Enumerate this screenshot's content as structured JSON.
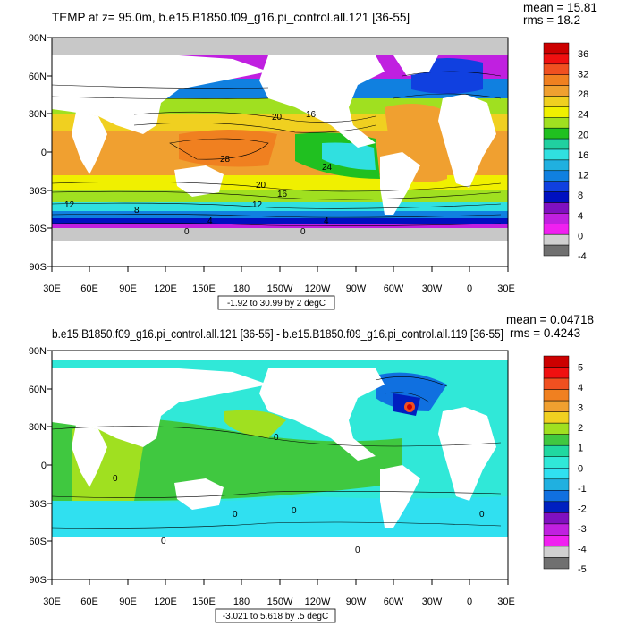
{
  "panel1": {
    "title": "TEMP at z=  95.0m, b.e15.B1850.f09_g16.pi_control.all.121 [36-55]",
    "stats_mean": "mean = 15.81",
    "stats_rms": "rms = 18.2",
    "contour_info": "-1.92 to 30.99 by 2 degC",
    "lat_labels": [
      "90N",
      "60N",
      "30N",
      "0",
      "30S",
      "60S",
      "90S"
    ],
    "lon_labels": [
      "30E",
      "60E",
      "90E",
      "120E",
      "150E",
      "180",
      "150W",
      "120W",
      "90W",
      "60W",
      "30W",
      "0",
      "30E"
    ],
    "colorbar_labels": [
      "36",
      "32",
      "28",
      "24",
      "20",
      "16",
      "12",
      "8",
      "4",
      "0",
      "-4"
    ],
    "colorbar_colors": [
      "#cc0000",
      "#f01010",
      "#f05020",
      "#f08020",
      "#f0a030",
      "#f0d020",
      "#f0f000",
      "#a0e020",
      "#20c020",
      "#20d0a0",
      "#30e0e0",
      "#20b0e0",
      "#1080e0",
      "#1040e0",
      "#0010c0",
      "#8010c0",
      "#c020e0",
      "#f020f0",
      "#d0d0d0",
      "#707070"
    ],
    "contour_labels": [
      "20",
      "16",
      "28",
      "24",
      "20",
      "16",
      "12",
      "12",
      "8",
      "4",
      "0",
      "0",
      "4"
    ]
  },
  "panel2": {
    "title": "b.e15.B1850.f09_g16.pi_control.all.121 [36-55] - b.e15.B1850.f09_g16.pi_control.all.119 [36-55]",
    "stats_mean": "mean = 0.04718",
    "stats_rms": "rms = 0.4243",
    "contour_info": "-3.021 to 5.618 by .5 degC",
    "lat_labels": [
      "90N",
      "60N",
      "30N",
      "0",
      "30S",
      "60S",
      "90S"
    ],
    "lon_labels": [
      "30E",
      "60E",
      "90E",
      "120E",
      "150E",
      "180",
      "150W",
      "120W",
      "90W",
      "60W",
      "30W",
      "0",
      "30E"
    ],
    "colorbar_labels": [
      "5",
      "4",
      "3",
      "2",
      "1",
      "0",
      "-1",
      "-2",
      "-3",
      "-4",
      "-5"
    ],
    "colorbar_colors": [
      "#cc0000",
      "#f01010",
      "#f05020",
      "#f08020",
      "#f0a030",
      "#f0d020",
      "#a0e020",
      "#40c840",
      "#20d8a0",
      "#30e8d8",
      "#30e0f0",
      "#20b0e0",
      "#1070e0",
      "#0020c0",
      "#8010c0",
      "#c020e0",
      "#f020f0",
      "#d0d0d0",
      "#707070"
    ],
    "contour_labels": [
      "0",
      "0",
      "0",
      "0",
      "0",
      "0",
      "0"
    ]
  },
  "colors": {
    "land_gray": "#c8c8c8",
    "map_bg": "#ffffff"
  }
}
